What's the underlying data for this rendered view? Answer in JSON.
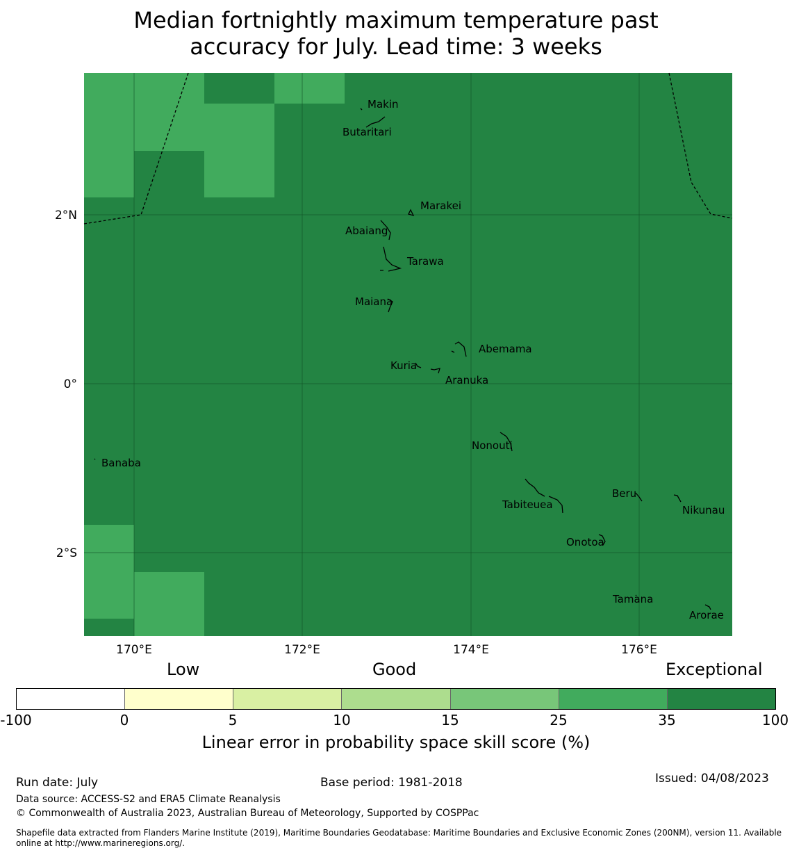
{
  "title_line1": "Median fortnightly maximum temperature past",
  "title_line2": "accuracy for July. Lead time: 3 weeks",
  "map": {
    "lat_labels": [
      "2°N",
      "0°",
      "2°S"
    ],
    "lon_labels": [
      "170°E",
      "172°E",
      "174°E",
      "176°E"
    ],
    "colors": {
      "exceptional": "#238443",
      "very_good": "#41ab5d",
      "gridline": "#0f4f24"
    },
    "places": [
      "Makin",
      "Butaritari",
      "Marakei",
      "Abaiang",
      "Tarawa",
      "Maiana",
      "Abemama",
      "Kuria",
      "Aranuka",
      "Nonouti",
      "Banaba",
      "Tabiteuea",
      "Beru",
      "Nikunau",
      "Onotoa",
      "Tamana",
      "Arorae"
    ]
  },
  "legend": {
    "categories": [
      "Low",
      "Good",
      "Exceptional"
    ],
    "ticks": [
      "-100",
      "0",
      "5",
      "10",
      "15",
      "25",
      "35",
      "100"
    ],
    "colors": [
      "#ffffff",
      "#ffffcc",
      "#d9f0a3",
      "#addd8e",
      "#78c679",
      "#41ab5d",
      "#238443"
    ],
    "label": "Linear error in probability space skill score (%)"
  },
  "footer": {
    "run_date": "Run date: July",
    "base_period": "Base period: 1981-2018",
    "issued": "Issued: 04/08/2023",
    "data_source": "Data source: ACCESS-S2 and ERA5 Climate Reanalysis",
    "copyright": "© Commonwealth of Australia 2023, Australian Bureau of Meteorology, Supported by COSPPac",
    "shapefile_line1": "Shapefile data extracted from Flanders Marine Institute (2019), Maritime Boundaries Geodatabase: Maritime Boundaries and Exclusive Economic Zones (200NM), version 11. Available",
    "shapefile_line2": "online at http://www.marineregions.org/."
  }
}
